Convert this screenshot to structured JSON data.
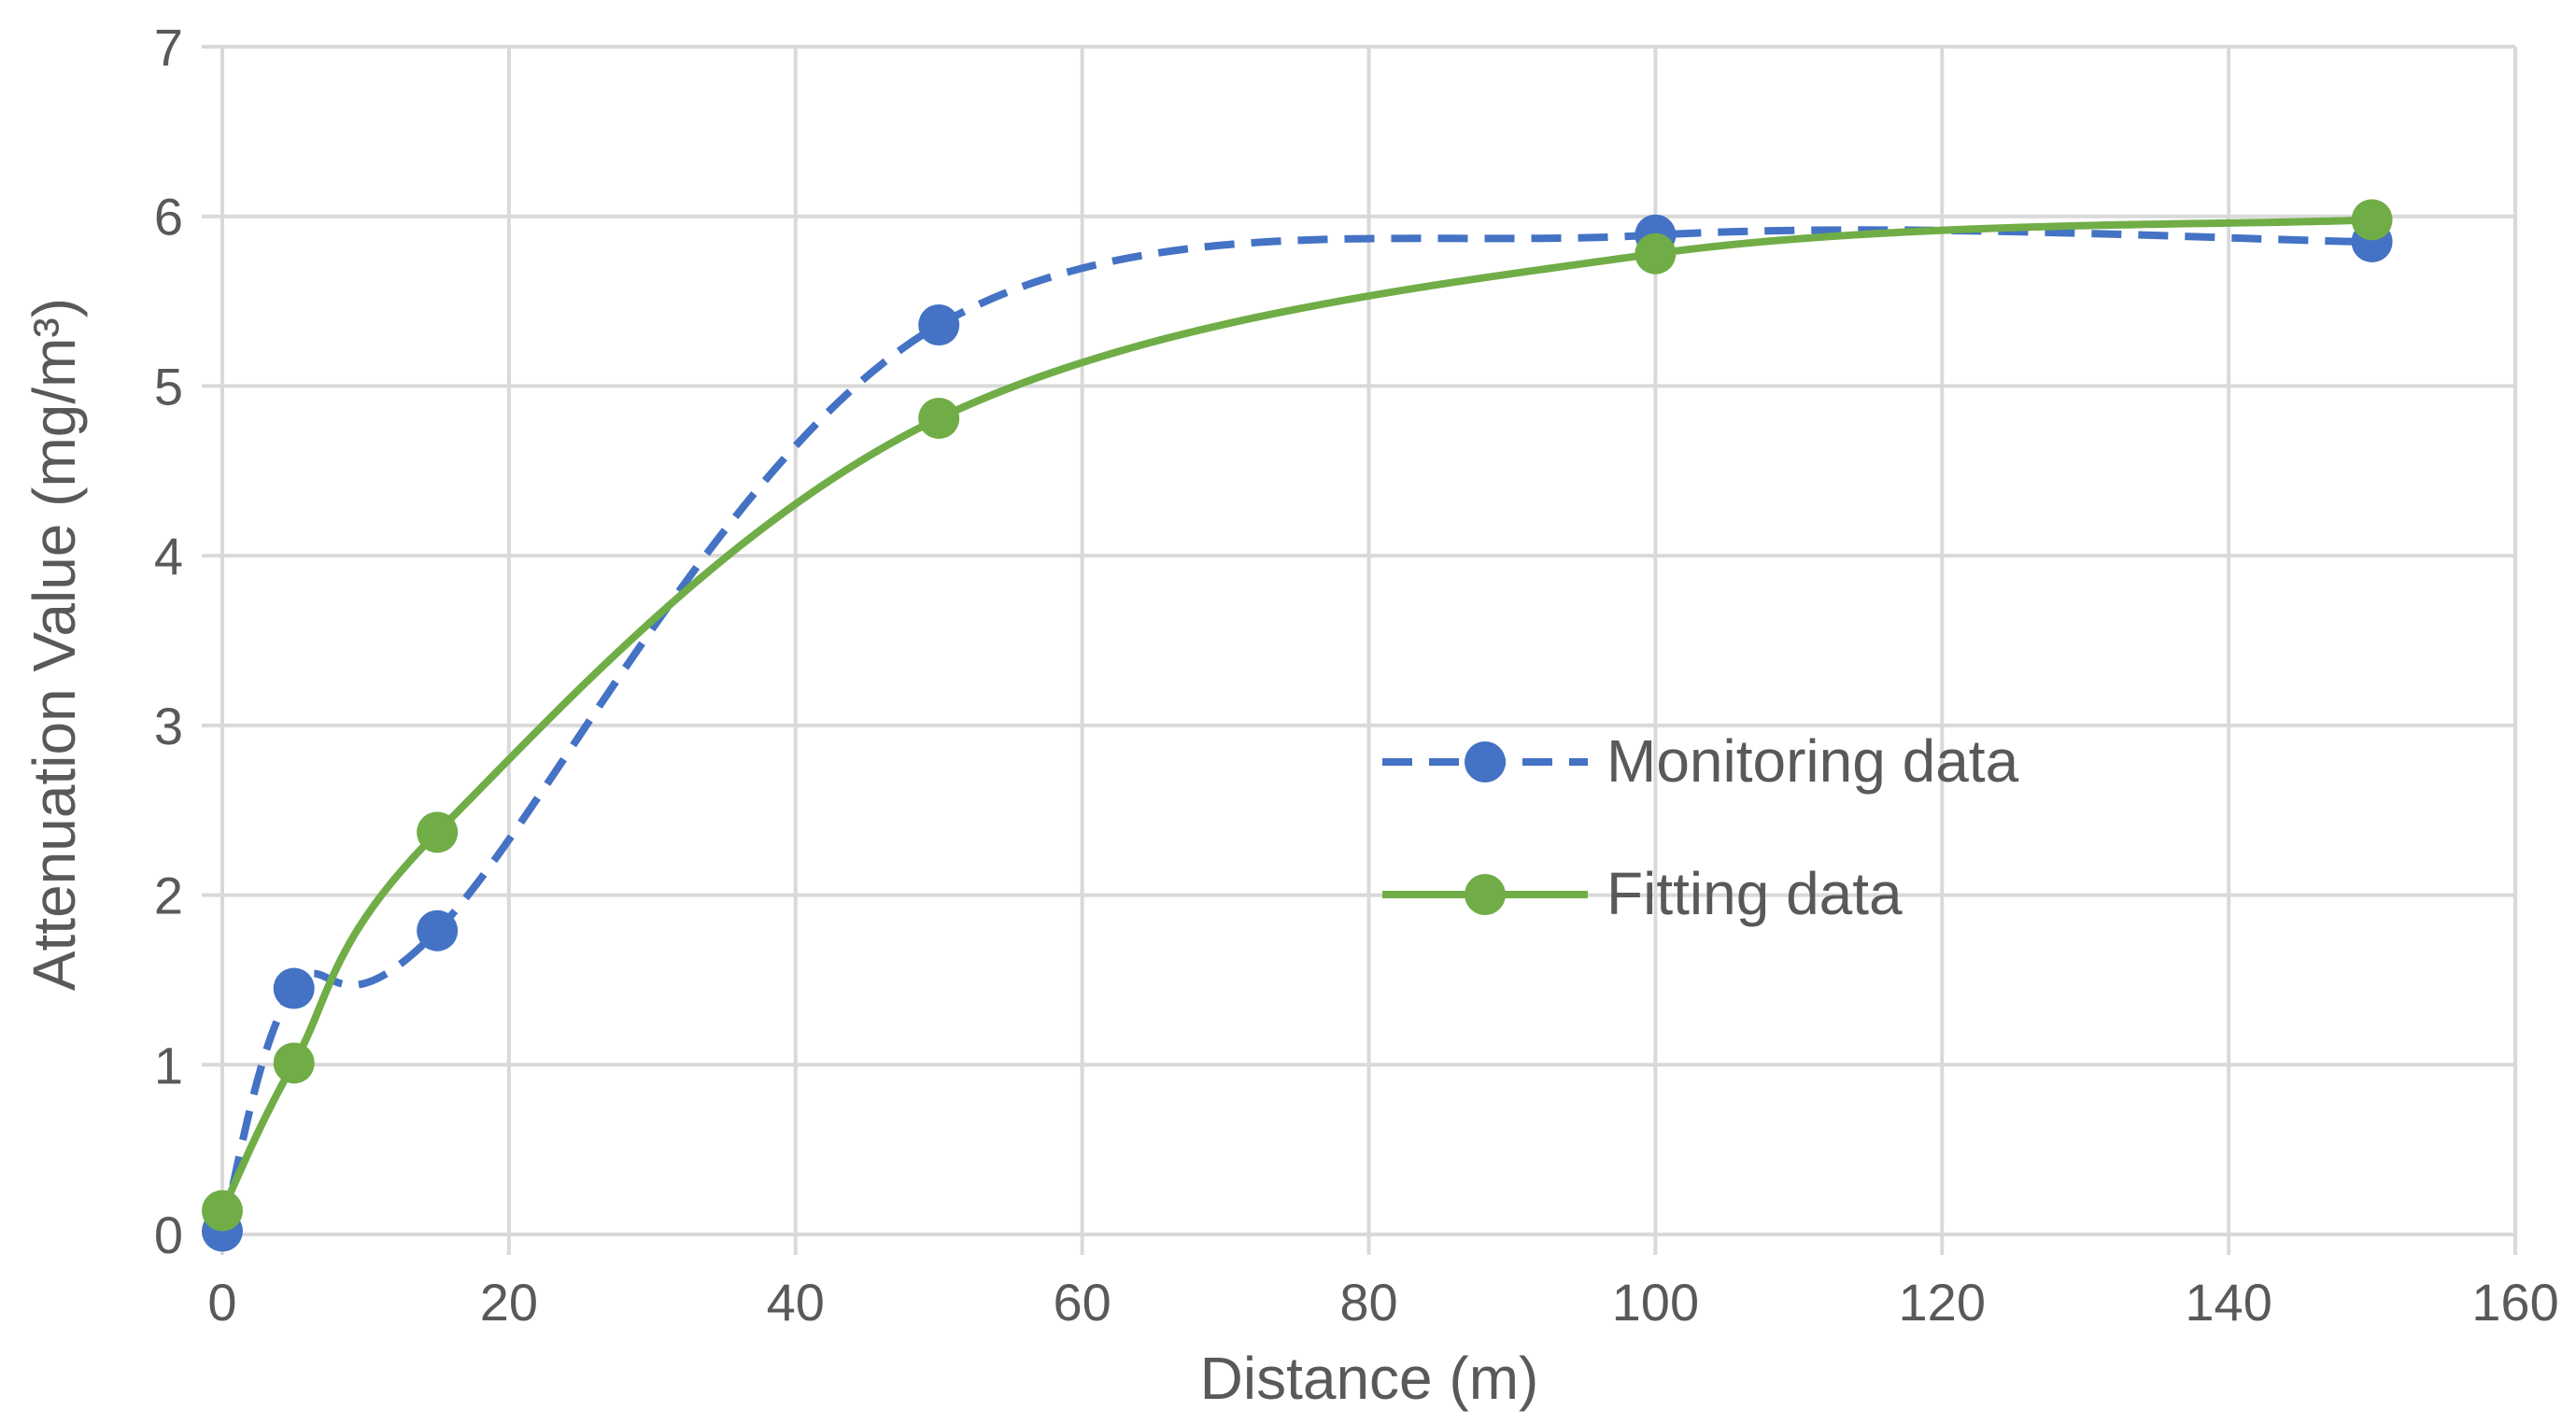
{
  "chart_data": {
    "type": "line",
    "title": "",
    "xlabel": "Distance (m)",
    "ylabel": "Attenuation Value (mg/m³)",
    "xlim": [
      0,
      160
    ],
    "ylim": [
      0,
      7
    ],
    "x_ticks": [
      0,
      20,
      40,
      60,
      80,
      100,
      120,
      140,
      160
    ],
    "y_ticks": [
      0,
      1,
      2,
      3,
      4,
      5,
      6,
      7
    ],
    "x_tick_labels": [
      "0",
      "20",
      "40",
      "60",
      "80",
      "100",
      "120",
      "140",
      "160"
    ],
    "y_tick_labels": [
      "0",
      "1",
      "2",
      "3",
      "4",
      "5",
      "6",
      "7"
    ],
    "grid": true,
    "legend_position": "center-right",
    "series": [
      {
        "name": "Monitoring data",
        "style": "dashed-smooth",
        "color": "#4472C4",
        "x": [
          0,
          5,
          15,
          50,
          100,
          150
        ],
        "values": [
          0.02,
          1.45,
          1.79,
          5.36,
          5.89,
          5.85
        ]
      },
      {
        "name": "Fitting data",
        "style": "solid-smooth",
        "color": "#70AD47",
        "x": [
          0,
          5,
          15,
          50,
          100,
          150
        ],
        "values": [
          0.14,
          1.01,
          2.37,
          4.81,
          5.78,
          5.98
        ]
      }
    ]
  }
}
